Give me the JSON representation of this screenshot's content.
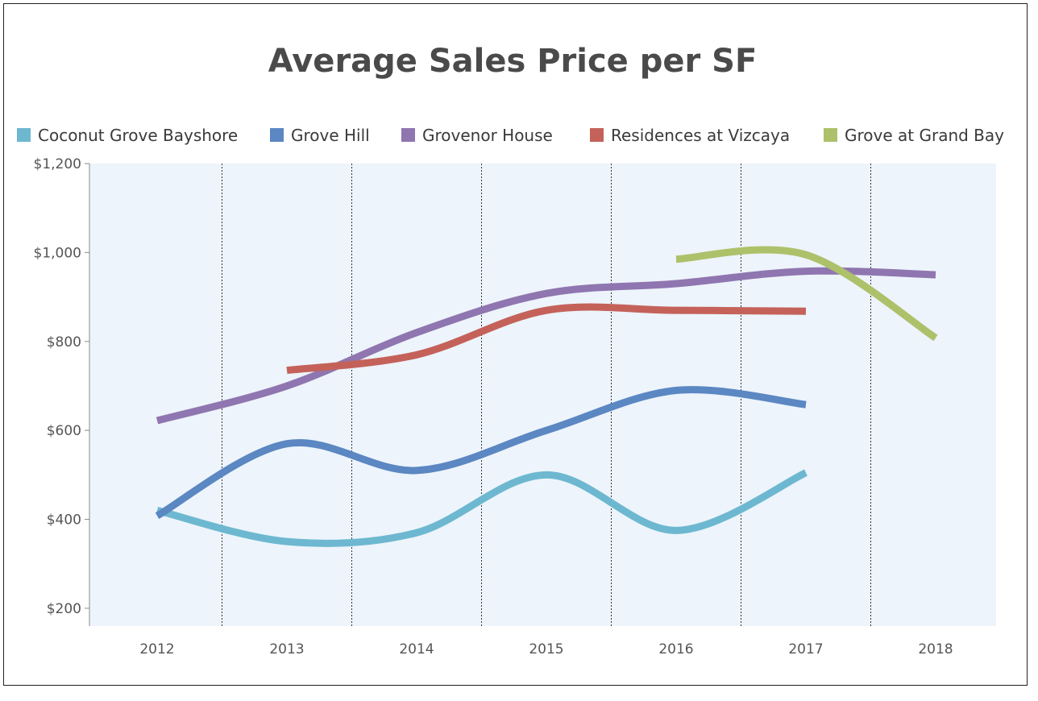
{
  "chart_data": {
    "type": "line",
    "title": "Average Sales Price per SF",
    "xlabel": "",
    "ylabel": "",
    "categories": [
      "2012",
      "2013",
      "2014",
      "2015",
      "2016",
      "2017",
      "2018"
    ],
    "yticks": [
      "$200",
      "$400",
      "$600",
      "$800",
      "$1,000",
      "$1,200"
    ],
    "ylim": [
      160,
      1200
    ],
    "legend_position": "top",
    "series": [
      {
        "name": "Coconut Grove Bayshore",
        "color": "#6db8d0",
        "values": [
          420,
          350,
          370,
          500,
          375,
          505,
          null
        ]
      },
      {
        "name": "Grove Hill",
        "color": "#5b87c2",
        "values": [
          408,
          570,
          510,
          600,
          690,
          658,
          null
        ]
      },
      {
        "name": "Grovenor House",
        "color": "#8f76b0",
        "values": [
          622,
          700,
          820,
          908,
          930,
          958,
          950
        ]
      },
      {
        "name": "Residences at Vizcaya",
        "color": "#c4625a",
        "values": [
          null,
          735,
          770,
          870,
          870,
          868,
          null
        ]
      },
      {
        "name": "Grove at Grand Bay",
        "color": "#adc16a",
        "values": [
          null,
          null,
          null,
          null,
          985,
          995,
          808
        ]
      }
    ]
  }
}
